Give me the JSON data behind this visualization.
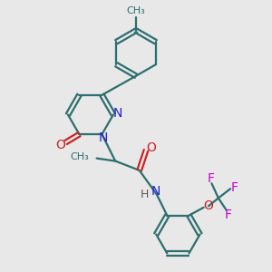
{
  "bg_color": "#e8e8e8",
  "bond_color": "#2d6e6e",
  "n_color": "#2222cc",
  "o_color": "#cc2222",
  "f_color": "#cc00cc",
  "h_color": "#5a5a5a",
  "line_width": 1.6,
  "figsize": [
    3.0,
    3.0
  ],
  "dpi": 100,
  "xlim": [
    0,
    10
  ],
  "ylim": [
    0,
    10
  ]
}
